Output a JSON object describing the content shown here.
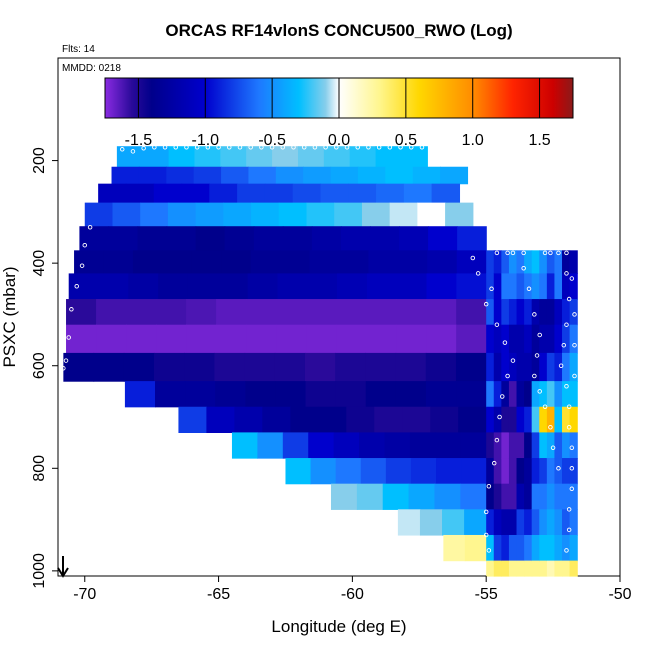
{
  "chart_data": {
    "type": "heatmap",
    "title": "ORCAS RF14vlonS CONCU500_RWO (Log)",
    "flights_label": "Flts: 14",
    "date_label": "MMDD: 0218",
    "xlabel": "Longitude (deg E)",
    "ylabel": "PSXC (mbar)",
    "xlim": [
      -71.0,
      -50.0
    ],
    "ylim": [
      1010,
      0
    ],
    "x_ticks": [
      -70,
      -65,
      -60,
      -55,
      -50
    ],
    "x_tick_labels": [
      "-70",
      "-65",
      "-60",
      "-55",
      "-50"
    ],
    "y_ticks": [
      200,
      400,
      600,
      800,
      1000
    ],
    "y_tick_labels": [
      "200",
      "400",
      "600",
      "800",
      "1000"
    ],
    "colorbar": {
      "min": -1.75,
      "max": 1.75,
      "ticks": [
        -1.5,
        -1.0,
        -0.5,
        0.0,
        0.5,
        1.0,
        1.5
      ],
      "tick_labels": [
        "-1.5",
        "-1.0",
        "-0.5",
        "0.0",
        "0.5",
        "1.0",
        "1.5"
      ],
      "stops": [
        {
          "v": -1.75,
          "c": "#8a2be2"
        },
        {
          "v": -1.55,
          "c": "#2a0a9a"
        },
        {
          "v": -1.4,
          "c": "#00008b"
        },
        {
          "v": -1.0,
          "c": "#0000cd"
        },
        {
          "v": -0.6,
          "c": "#1e78ff"
        },
        {
          "v": -0.3,
          "c": "#00bfff"
        },
        {
          "v": -0.1,
          "c": "#87ceeb"
        },
        {
          "v": 0.0,
          "c": "#ffffff"
        },
        {
          "v": 0.3,
          "c": "#fff68f"
        },
        {
          "v": 0.6,
          "c": "#ffd700"
        },
        {
          "v": 1.0,
          "c": "#ff8c00"
        },
        {
          "v": 1.3,
          "c": "#ff2400"
        },
        {
          "v": 1.6,
          "c": "#cd0000"
        },
        {
          "v": 1.75,
          "c": "#8b1a1a"
        }
      ]
    },
    "rows": [
      {
        "p": 172,
        "p2": 212,
        "x0": -68.8,
        "x1": -57.2,
        "values": [
          -0.4,
          -0.4,
          -0.3,
          -0.25,
          -0.2,
          -0.15,
          -0.1,
          -0.15,
          -0.2,
          -0.25,
          -0.3,
          -0.3
        ]
      },
      {
        "p": 212,
        "p2": 245,
        "x0": -69.0,
        "x1": -55.7,
        "values": [
          -0.9,
          -0.9,
          -0.85,
          -0.8,
          -0.7,
          -0.6,
          -0.5,
          -0.45,
          -0.4,
          -0.35,
          -0.3,
          -0.35,
          -0.4
        ]
      },
      {
        "p": 245,
        "p2": 282,
        "x0": -69.5,
        "x1": -56.0,
        "values": [
          -1.1,
          -1.1,
          -1.0,
          -1.0,
          -0.9,
          -0.8,
          -0.8,
          -0.75,
          -0.7,
          -0.7,
          -0.65,
          -0.6,
          -0.7
        ]
      },
      {
        "p": 282,
        "p2": 328,
        "x0": -70.0,
        "x1": -55.5,
        "values": [
          -0.8,
          -0.7,
          -0.6,
          -0.5,
          -0.45,
          -0.4,
          -0.35,
          -0.3,
          -0.25,
          -0.2,
          -0.1,
          -0.05,
          0.0,
          -0.1
        ]
      },
      {
        "p": 328,
        "p2": 375,
        "x0": -70.2,
        "x1": -55.0,
        "values": [
          -1.3,
          -1.3,
          -1.35,
          -1.35,
          -1.4,
          -1.35,
          -1.3,
          -1.3,
          -1.25,
          -1.2,
          -1.2,
          -1.15,
          -1.0,
          -0.9
        ]
      },
      {
        "p": 375,
        "p2": 420,
        "x0": -70.4,
        "x1": -55.0,
        "values": [
          -1.35,
          -1.35,
          -1.4,
          -1.4,
          -1.4,
          -1.4,
          -1.35,
          -1.35,
          -1.3,
          -1.3,
          -1.25,
          -1.25,
          -1.2,
          -1.1
        ]
      },
      {
        "p": 420,
        "p2": 470,
        "x0": -70.6,
        "x1": -55.0,
        "values": [
          -1.2,
          -1.2,
          -1.25,
          -1.3,
          -1.3,
          -1.3,
          -1.25,
          -1.2,
          -1.2,
          -1.15,
          -1.1,
          -1.1,
          -1.0,
          -0.95
        ]
      },
      {
        "p": 470,
        "p2": 520,
        "x0": -70.7,
        "x1": -55.0,
        "values": [
          -1.55,
          -1.6,
          -1.6,
          -1.6,
          -1.62,
          -1.65,
          -1.65,
          -1.65,
          -1.65,
          -1.65,
          -1.65,
          -1.65,
          -1.65,
          -1.6
        ]
      },
      {
        "p": 520,
        "p2": 575,
        "x0": -70.7,
        "x1": -55.0,
        "values": [
          -1.7,
          -1.7,
          -1.7,
          -1.7,
          -1.7,
          -1.7,
          -1.7,
          -1.7,
          -1.7,
          -1.7,
          -1.7,
          -1.7,
          -1.7,
          -1.65
        ]
      },
      {
        "p": 575,
        "p2": 630,
        "x0": -70.8,
        "x1": -55.0,
        "values": [
          -1.4,
          -1.4,
          -1.4,
          -1.45,
          -1.45,
          -1.5,
          -1.5,
          -1.5,
          -1.55,
          -1.5,
          -1.5,
          -1.5,
          -1.45,
          -1.4
        ]
      },
      {
        "p": 630,
        "p2": 680,
        "x0": -68.5,
        "x1": -55.0,
        "values": [
          -0.9,
          -1.3,
          -1.3,
          -1.35,
          -1.4,
          -1.4,
          -1.45,
          -1.45,
          -1.4,
          -1.4,
          -1.35,
          -1.35
        ]
      },
      {
        "p": 680,
        "p2": 730,
        "x0": -66.5,
        "x1": -55.0,
        "values": [
          -0.8,
          -1.1,
          -1.2,
          -1.3,
          -1.4,
          -1.4,
          -1.45,
          -1.5,
          -1.5,
          -1.45,
          -1.4
        ]
      },
      {
        "p": 730,
        "p2": 780,
        "x0": -64.5,
        "x1": -55.0,
        "values": [
          -0.3,
          -0.5,
          -0.8,
          -1.0,
          -1.1,
          -1.2,
          -1.25,
          -1.3,
          -1.3,
          -1.3
        ]
      },
      {
        "p": 780,
        "p2": 830,
        "x0": -62.5,
        "x1": -55.0,
        "values": [
          -0.3,
          -0.5,
          -0.6,
          -0.7,
          -0.8,
          -0.85,
          -0.9,
          -0.9
        ]
      },
      {
        "p": 830,
        "p2": 880,
        "x0": -60.8,
        "x1": -55.0,
        "values": [
          -0.1,
          -0.15,
          -0.3,
          -0.4,
          -0.5,
          -0.6
        ]
      },
      {
        "p": 880,
        "p2": 930,
        "x0": -58.3,
        "x1": -55.0,
        "values": [
          -0.05,
          -0.1,
          -0.2,
          -0.4
        ]
      },
      {
        "p": 930,
        "p2": 980,
        "x0": -56.6,
        "x1": -55.0,
        "values": [
          0.25,
          0.3
        ]
      }
    ],
    "east_columns": {
      "x0": -55.0,
      "x1": -51.6,
      "cols": [
        [
          -0.8,
          -0.8,
          -0.7,
          -1.0,
          -0.9,
          -0.6,
          -1.0,
          -1.5,
          -1.3,
          -1.4,
          -0.9,
          -0.3,
          0.3,
          0.5
        ],
        [
          -0.9,
          -1.0,
          -1.0,
          -1.1,
          -1.2,
          -0.9,
          -1.2,
          -1.6,
          -1.6,
          -1.5,
          -1.1,
          -0.8,
          0.4,
          0.5
        ],
        [
          -0.7,
          -0.6,
          -0.8,
          -1.0,
          -1.0,
          -1.3,
          -1.5,
          -1.7,
          -1.7,
          -1.6,
          -1.2,
          -0.9,
          0.4,
          0.6
        ],
        [
          -0.5,
          -0.6,
          -0.9,
          -1.2,
          -1.1,
          -1.6,
          -1.5,
          -1.6,
          -1.6,
          -1.6,
          -1.2,
          -0.7,
          0.3,
          0.6
        ],
        [
          -0.6,
          -0.7,
          -1.0,
          -1.2,
          -1.2,
          -1.3,
          -1.0,
          -1.6,
          -1.4,
          -1.2,
          -0.8,
          -0.7,
          0.3,
          0.6
        ],
        [
          -0.4,
          -0.6,
          -0.9,
          -1.1,
          -1.2,
          -1.4,
          -0.9,
          -1.4,
          -1.3,
          -1.3,
          -0.9,
          -0.6,
          0.3,
          0.5
        ],
        [
          -0.3,
          -0.5,
          -1.2,
          -1.3,
          -1.3,
          -0.4,
          -0.2,
          -0.8,
          -0.9,
          -0.6,
          -0.7,
          -0.4,
          0.3,
          0.5
        ],
        [
          -0.5,
          -0.6,
          -1.3,
          -1.2,
          -1.0,
          -0.3,
          0.6,
          -0.3,
          -0.8,
          -0.6,
          -0.5,
          -0.3,
          0.3,
          0.5
        ],
        [
          -0.7,
          -0.9,
          -1.3,
          -1.2,
          -0.8,
          -0.2,
          0.8,
          -0.4,
          -0.6,
          -0.5,
          -0.4,
          -0.3,
          0.2,
          0.4
        ],
        [
          -0.6,
          -0.6,
          -1.1,
          -1.0,
          -0.9,
          -0.5,
          -0.3,
          -0.7,
          -0.7,
          -0.6,
          -0.5,
          -0.4,
          0.3,
          0.4
        ],
        [
          -1.3,
          -1.1,
          -0.9,
          -0.8,
          -0.6,
          -0.3,
          0.5,
          -0.5,
          -0.8,
          -0.6,
          -0.7,
          -0.5,
          0.3,
          0.5
        ],
        [
          -1.2,
          -1.0,
          -0.8,
          -0.6,
          -0.4,
          -0.3,
          0.6,
          -0.6,
          -0.8,
          -0.6,
          -0.6,
          -0.4,
          0.4,
          0.5
        ]
      ],
      "pressures": [
        375,
        420,
        470,
        520,
        575,
        630,
        680,
        730,
        780,
        830,
        880,
        930,
        980,
        1010
      ]
    },
    "flight_track_points": [
      [
        -68.6,
        178
      ],
      [
        -68.2,
        182
      ],
      [
        -67.8,
        176
      ],
      [
        -67.4,
        174
      ],
      [
        -67.0,
        174
      ],
      [
        -66.6,
        174
      ],
      [
        -66.2,
        174
      ],
      [
        -65.8,
        174
      ],
      [
        -65.4,
        174
      ],
      [
        -65.0,
        174
      ],
      [
        -64.6,
        174
      ],
      [
        -64.2,
        174
      ],
      [
        -63.8,
        174
      ],
      [
        -63.4,
        174
      ],
      [
        -63.0,
        174
      ],
      [
        -62.6,
        174
      ],
      [
        -62.2,
        174
      ],
      [
        -61.8,
        174
      ],
      [
        -61.4,
        174
      ],
      [
        -61.0,
        174
      ],
      [
        -60.6,
        174
      ],
      [
        -60.2,
        174
      ],
      [
        -59.8,
        174
      ],
      [
        -59.4,
        174
      ],
      [
        -59.0,
        174
      ],
      [
        -58.6,
        174
      ],
      [
        -58.2,
        174
      ],
      [
        -57.8,
        174
      ],
      [
        -57.4,
        174
      ],
      [
        -57.0,
        174
      ],
      [
        -69.8,
        330
      ],
      [
        -70.0,
        365
      ],
      [
        -70.1,
        405
      ],
      [
        -70.3,
        445
      ],
      [
        -70.5,
        490
      ],
      [
        -70.6,
        545
      ],
      [
        -70.7,
        590
      ],
      [
        -70.8,
        605
      ],
      [
        -54.6,
        380
      ],
      [
        -54.2,
        380
      ],
      [
        -54.0,
        380
      ],
      [
        -53.6,
        380
      ],
      [
        -52.8,
        380
      ],
      [
        -52.6,
        380
      ],
      [
        -52.3,
        380
      ],
      [
        -52.0,
        380
      ],
      [
        -55.5,
        390
      ],
      [
        -55.3,
        420
      ],
      [
        -54.8,
        450
      ],
      [
        -55.0,
        480
      ],
      [
        -54.6,
        520
      ],
      [
        -54.3,
        555
      ],
      [
        -54.0,
        590
      ],
      [
        -54.2,
        620
      ],
      [
        -54.4,
        660
      ],
      [
        -54.5,
        700
      ],
      [
        -54.6,
        745
      ],
      [
        -54.7,
        790
      ],
      [
        -54.9,
        835
      ],
      [
        -55.0,
        885
      ],
      [
        -55.0,
        930
      ],
      [
        -54.9,
        960
      ],
      [
        -53.6,
        410
      ],
      [
        -53.4,
        450
      ],
      [
        -53.2,
        500
      ],
      [
        -53.0,
        540
      ],
      [
        -53.1,
        580
      ],
      [
        -53.2,
        620
      ],
      [
        -53.0,
        650
      ],
      [
        -52.8,
        680
      ],
      [
        -52.6,
        720
      ],
      [
        -52.5,
        760
      ],
      [
        -52.3,
        800
      ],
      [
        -52.0,
        420
      ],
      [
        -51.9,
        470
      ],
      [
        -52.0,
        520
      ],
      [
        -52.1,
        560
      ],
      [
        -52.2,
        600
      ],
      [
        -52.0,
        640
      ],
      [
        -51.9,
        680
      ],
      [
        -51.9,
        720
      ],
      [
        -51.8,
        760
      ],
      [
        -51.8,
        800
      ],
      [
        -51.8,
        840
      ],
      [
        -51.9,
        880
      ],
      [
        -51.9,
        920
      ],
      [
        -52.0,
        960
      ],
      [
        -51.8,
        430
      ],
      [
        -51.7,
        500
      ],
      [
        -51.7,
        560
      ],
      [
        -51.7,
        620
      ]
    ]
  }
}
